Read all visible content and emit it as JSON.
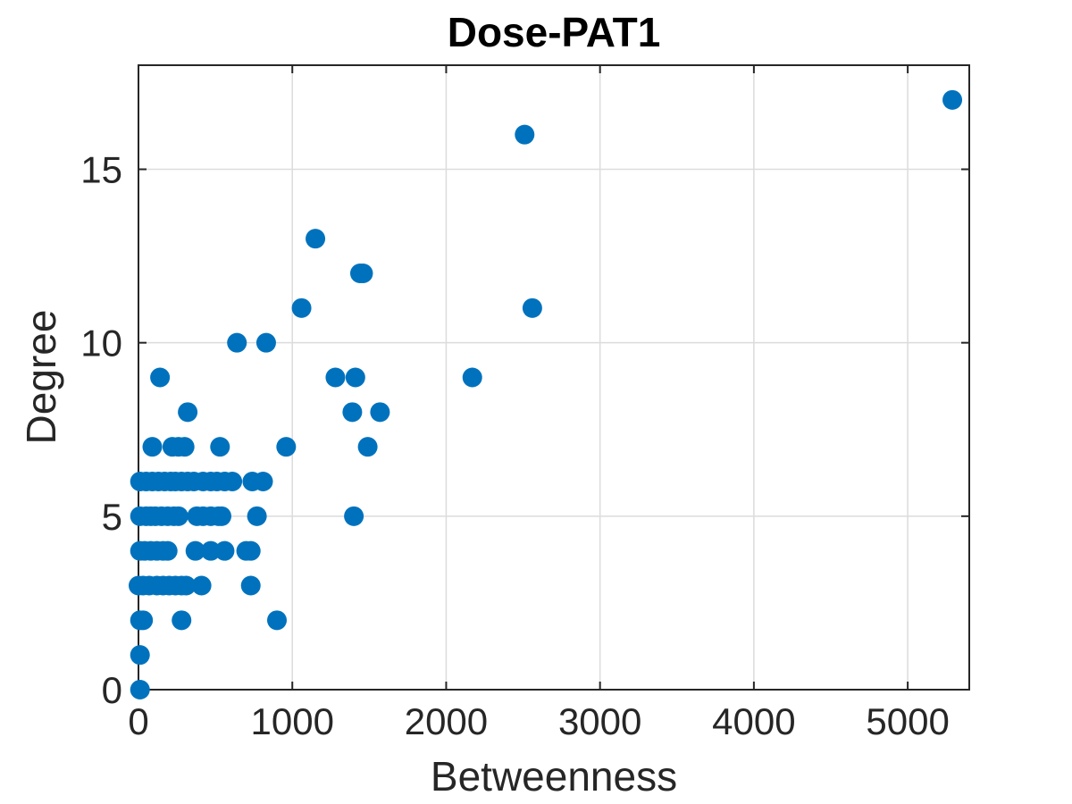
{
  "chart_data": {
    "type": "scatter",
    "title": "Dose-PAT1",
    "xlabel": "Betweenness",
    "ylabel": "Degree",
    "xlim": [
      0,
      5400
    ],
    "ylim": [
      0,
      18
    ],
    "xticks": [
      0,
      1000,
      2000,
      3000,
      4000,
      5000
    ],
    "yticks": [
      0,
      5,
      10,
      15
    ],
    "grid": true,
    "marker_color": "#0072BD",
    "points": [
      [
        5290,
        17
      ],
      [
        2510,
        16
      ],
      [
        1150,
        13
      ],
      [
        1440,
        12
      ],
      [
        1460,
        12
      ],
      [
        1060,
        11
      ],
      [
        2560,
        11
      ],
      [
        640,
        10
      ],
      [
        830,
        10
      ],
      [
        140,
        9
      ],
      [
        1280,
        9
      ],
      [
        1410,
        9
      ],
      [
        2170,
        9
      ],
      [
        320,
        8
      ],
      [
        1390,
        8
      ],
      [
        1570,
        8
      ],
      [
        90,
        7
      ],
      [
        220,
        7
      ],
      [
        260,
        7
      ],
      [
        300,
        7
      ],
      [
        530,
        7
      ],
      [
        960,
        7
      ],
      [
        1490,
        7
      ],
      [
        10,
        6
      ],
      [
        50,
        6
      ],
      [
        90,
        6
      ],
      [
        130,
        6
      ],
      [
        170,
        6
      ],
      [
        210,
        6
      ],
      [
        240,
        6
      ],
      [
        280,
        6
      ],
      [
        320,
        6
      ],
      [
        360,
        6
      ],
      [
        420,
        6
      ],
      [
        470,
        6
      ],
      [
        510,
        6
      ],
      [
        560,
        6
      ],
      [
        610,
        6
      ],
      [
        740,
        6
      ],
      [
        810,
        6
      ],
      [
        10,
        5
      ],
      [
        50,
        5
      ],
      [
        80,
        5
      ],
      [
        110,
        5
      ],
      [
        150,
        5
      ],
      [
        190,
        5
      ],
      [
        230,
        5
      ],
      [
        260,
        5
      ],
      [
        380,
        5
      ],
      [
        420,
        5
      ],
      [
        470,
        5
      ],
      [
        520,
        5
      ],
      [
        540,
        5
      ],
      [
        770,
        5
      ],
      [
        1400,
        5
      ],
      [
        10,
        4
      ],
      [
        40,
        4
      ],
      [
        80,
        4
      ],
      [
        120,
        4
      ],
      [
        160,
        4
      ],
      [
        190,
        4
      ],
      [
        370,
        4
      ],
      [
        470,
        4
      ],
      [
        560,
        4
      ],
      [
        700,
        4
      ],
      [
        730,
        4
      ],
      [
        0,
        3
      ],
      [
        30,
        3
      ],
      [
        70,
        3
      ],
      [
        120,
        3
      ],
      [
        160,
        3
      ],
      [
        200,
        3
      ],
      [
        240,
        3
      ],
      [
        280,
        3
      ],
      [
        310,
        3
      ],
      [
        410,
        3
      ],
      [
        730,
        3
      ],
      [
        10,
        2
      ],
      [
        30,
        2
      ],
      [
        280,
        2
      ],
      [
        900,
        2
      ],
      [
        10,
        1
      ],
      [
        10,
        0
      ]
    ]
  }
}
